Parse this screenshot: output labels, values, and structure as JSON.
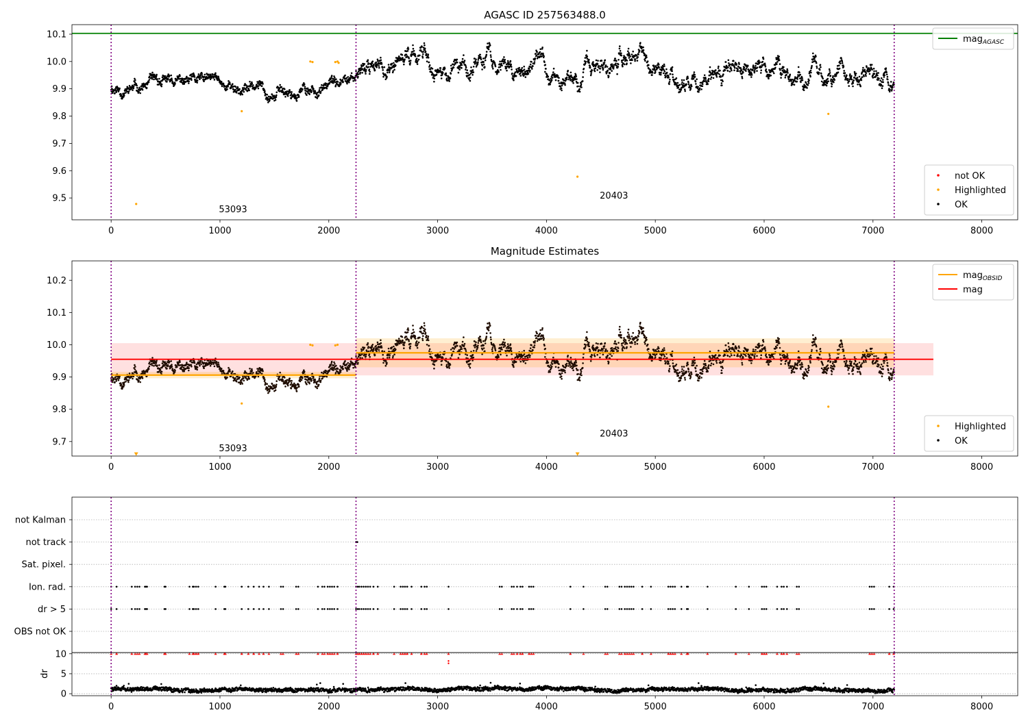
{
  "chart_data": [
    {
      "type": "scatter",
      "title": "AGASC ID 257563488.0",
      "xlabel": "",
      "ylabel": "",
      "xlim": [
        -360,
        8330
      ],
      "ylim": [
        9.42,
        10.135
      ],
      "xticks": [
        0,
        1000,
        2000,
        3000,
        4000,
        5000,
        6000,
        7000,
        8000
      ],
      "xtick_labels": [
        "0",
        "1000",
        "2000",
        "3000",
        "4000",
        "5000",
        "6000",
        "7000",
        "8000"
      ],
      "yticks": [
        9.5,
        9.6,
        9.7,
        9.8,
        9.9,
        10.0,
        10.1
      ],
      "ytick_labels": [
        "9.5",
        "9.6",
        "9.7",
        "9.8",
        "9.9",
        "10.0",
        "10.1"
      ],
      "grid": false,
      "obsid_boundaries": [
        0,
        2250,
        7195
      ],
      "obsid_annotations": [
        {
          "text": "53093",
          "x": 1120,
          "y": 9.447
        },
        {
          "text": "20403",
          "x": 4620,
          "y": 9.498
        }
      ],
      "reference_line": {
        "name": "mag_AGASC",
        "y": 10.103,
        "x_range": [
          -360,
          8330
        ],
        "color": "#008000"
      },
      "series": [
        {
          "name": "OK",
          "color": "#000000",
          "segments": [
            {
              "x_range": [
                0,
                2250
              ],
              "baseline": 9.905,
              "amplitude": 0.045
            },
            {
              "x_range": [
                2250,
                7195
              ],
              "baseline": 9.975,
              "amplitude": 0.085
            }
          ]
        },
        {
          "name": "Highlighted",
          "color": "#ffa500",
          "points": [
            {
              "x": 230,
              "y": 9.478
            },
            {
              "x": 1200,
              "y": 9.818
            },
            {
              "x": 1830,
              "y": 10.0
            },
            {
              "x": 1850,
              "y": 9.998
            },
            {
              "x": 2060,
              "y": 9.998
            },
            {
              "x": 2080,
              "y": 10.0
            },
            {
              "x": 2090,
              "y": 9.995
            },
            {
              "x": 4285,
              "y": 9.578
            },
            {
              "x": 6590,
              "y": 9.808
            }
          ]
        },
        {
          "name": "not OK",
          "color": "#ff0000",
          "points": []
        }
      ],
      "legends": [
        {
          "position": "top-right",
          "entries": [
            {
              "label": "mag",
              "sub": "AGASC",
              "kind": "line",
              "color": "#008000"
            }
          ]
        },
        {
          "position": "lower-right",
          "entries": [
            {
              "label": "not OK",
              "kind": "dot",
              "color": "#ff0000"
            },
            {
              "label": "Highlighted",
              "kind": "dot",
              "color": "#ffa500"
            },
            {
              "label": "OK",
              "kind": "dot",
              "color": "#000000"
            }
          ]
        }
      ]
    },
    {
      "type": "scatter",
      "title": "Magnitude Estimates",
      "xlabel": "",
      "ylabel": "",
      "xlim": [
        -360,
        8330
      ],
      "ylim": [
        9.655,
        10.26
      ],
      "xticks": [
        0,
        1000,
        2000,
        3000,
        4000,
        5000,
        6000,
        7000,
        8000
      ],
      "xtick_labels": [
        "0",
        "1000",
        "2000",
        "3000",
        "4000",
        "5000",
        "6000",
        "7000",
        "8000"
      ],
      "yticks": [
        9.7,
        9.8,
        9.9,
        10.0,
        10.1,
        10.2
      ],
      "ytick_labels": [
        "9.7",
        "9.8",
        "9.9",
        "10.0",
        "10.1",
        "10.2"
      ],
      "grid": false,
      "obsid_boundaries": [
        0,
        2250,
        7195
      ],
      "obsid_annotations": [
        {
          "text": "53093",
          "x": 1120,
          "y": 9.67
        },
        {
          "text": "20403",
          "x": 4620,
          "y": 9.715
        }
      ],
      "mag_line": {
        "name": "mag",
        "y": 9.955,
        "band": [
          9.905,
          10.005
        ],
        "x_range": [
          0,
          7555
        ],
        "color": "#ff0000"
      },
      "mag_obsid_lines": [
        {
          "x_range": [
            0,
            2250
          ],
          "y": 9.906,
          "band": [
            9.896,
            9.916
          ]
        },
        {
          "x_range": [
            2250,
            7195
          ],
          "y": 9.975,
          "band": [
            9.93,
            10.02
          ]
        }
      ],
      "series": [
        {
          "name": "OK",
          "color": "#000000",
          "segments": [
            {
              "x_range": [
                0,
                2250
              ],
              "baseline": 9.905,
              "amplitude": 0.045
            },
            {
              "x_range": [
                2250,
                7195
              ],
              "baseline": 9.975,
              "amplitude": 0.085
            }
          ]
        },
        {
          "name": "Highlighted",
          "color": "#ffa500",
          "points": [
            {
              "x": 1200,
              "y": 9.818
            },
            {
              "x": 1830,
              "y": 10.0
            },
            {
              "x": 1850,
              "y": 9.998
            },
            {
              "x": 2060,
              "y": 9.998
            },
            {
              "x": 2080,
              "y": 10.0
            },
            {
              "x": 6590,
              "y": 9.808
            }
          ]
        },
        {
          "name": "Highlighted (below range)",
          "color": "#ffa500",
          "marker": "down-triangle",
          "points": [
            {
              "x": 230,
              "y": 9.66
            },
            {
              "x": 4285,
              "y": 9.66
            }
          ]
        }
      ],
      "legends": [
        {
          "position": "top-right",
          "entries": [
            {
              "label": "mag",
              "sub": "OBSID",
              "kind": "line",
              "color": "#ffa500"
            },
            {
              "label": "mag",
              "sub": "",
              "kind": "line",
              "color": "#ff0000"
            }
          ]
        },
        {
          "position": "lower-right",
          "entries": [
            {
              "label": "Highlighted",
              "kind": "dot",
              "color": "#ffa500"
            },
            {
              "label": "OK",
              "kind": "dot",
              "color": "#000000"
            }
          ]
        }
      ]
    },
    {
      "type": "scatter",
      "title": "",
      "xlabel": "",
      "ylabel": "",
      "xlim": [
        -360,
        8330
      ],
      "flag_categories": [
        "not Kalman",
        "not track",
        "Sat. pixel.",
        "Ion. rad.",
        "dr > 5",
        "OBS not OK"
      ],
      "grid": true,
      "obsid_boundaries": [
        0,
        2250,
        7195
      ],
      "flags": [
        {
          "name": "not track",
          "x": [
            2250,
            2255,
            2262
          ]
        },
        {
          "name": "Ion. rad.",
          "x": [
            0,
            50,
            190,
            220,
            240,
            260,
            310,
            320,
            330,
            490,
            500,
            720,
            750,
            760,
            780,
            800,
            960,
            1040,
            1050,
            1200,
            1260,
            1310,
            1360,
            1400,
            1450,
            1560,
            1580,
            1700,
            1720,
            1900,
            1940,
            1960,
            1990,
            2010,
            2030,
            2050,
            2080,
            2250,
            2265,
            2280,
            2300,
            2320,
            2340,
            2360,
            2380,
            2410,
            2450,
            2600,
            2660,
            2680,
            2700,
            2720,
            2760,
            2850,
            2880,
            2900,
            3100,
            3570,
            3590,
            3680,
            3700,
            3730,
            3760,
            3780,
            3840,
            3860,
            3880,
            4220,
            4340,
            4540,
            4560,
            4670,
            4690,
            4720,
            4740,
            4760,
            4780,
            4800,
            4880,
            4960,
            5120,
            5140,
            5160,
            5180,
            5240,
            5290,
            5300,
            5480,
            5740,
            5860,
            5980,
            6000,
            6020,
            6120,
            6160,
            6180,
            6210,
            6300,
            6320,
            6970,
            6990,
            7010,
            7150,
            7190
          ]
        },
        {
          "name": "dr > 5",
          "x": [
            0,
            50,
            190,
            220,
            240,
            260,
            310,
            320,
            330,
            490,
            500,
            720,
            750,
            760,
            780,
            800,
            960,
            1040,
            1050,
            1200,
            1260,
            1310,
            1360,
            1400,
            1450,
            1560,
            1580,
            1700,
            1720,
            1900,
            1940,
            1960,
            1990,
            2010,
            2030,
            2050,
            2080,
            2250,
            2265,
            2280,
            2300,
            2320,
            2340,
            2360,
            2380,
            2410,
            2450,
            2600,
            2660,
            2680,
            2700,
            2720,
            2760,
            2850,
            2880,
            2900,
            3100,
            3570,
            3590,
            3680,
            3700,
            3730,
            3760,
            3780,
            3840,
            3860,
            3880,
            4220,
            4340,
            4540,
            4560,
            4670,
            4690,
            4720,
            4740,
            4760,
            4780,
            4800,
            4880,
            4960,
            5120,
            5140,
            5160,
            5180,
            5240,
            5290,
            5300,
            5480,
            5740,
            5860,
            5980,
            6000,
            6020,
            6120,
            6160,
            6180,
            6210,
            6300,
            6320,
            6970,
            6990,
            7010,
            7150,
            7190
          ]
        }
      ]
    },
    {
      "type": "scatter",
      "title": "",
      "xlabel": "",
      "ylabel": "dr",
      "xlim": [
        -360,
        8330
      ],
      "ylim": [
        -0.5,
        10.3
      ],
      "xticks": [
        0,
        1000,
        2000,
        3000,
        4000,
        5000,
        6000,
        7000,
        8000
      ],
      "xtick_labels": [
        "0",
        "1000",
        "2000",
        "3000",
        "4000",
        "5000",
        "6000",
        "7000",
        "8000"
      ],
      "yticks": [
        0,
        5,
        10
      ],
      "ytick_labels": [
        "0",
        "5",
        "10"
      ],
      "grid": true,
      "obsid_boundaries": [
        0,
        2250,
        7195
      ],
      "series": [
        {
          "name": "dr",
          "color": "#000000",
          "x_range": [
            0,
            7195
          ],
          "baseline": 1.0,
          "amplitude": 0.6
        },
        {
          "name": "dr clipped",
          "color": "#ff0000",
          "marker": "up-triangle",
          "y": 10,
          "x": [
            0,
            50,
            190,
            220,
            240,
            260,
            310,
            320,
            330,
            490,
            500,
            720,
            750,
            760,
            780,
            800,
            960,
            1040,
            1050,
            1200,
            1260,
            1310,
            1360,
            1400,
            1450,
            1560,
            1580,
            1700,
            1720,
            1900,
            1940,
            1960,
            1990,
            2010,
            2030,
            2050,
            2080,
            2250,
            2265,
            2280,
            2300,
            2320,
            2340,
            2360,
            2380,
            2410,
            2450,
            2600,
            2660,
            2680,
            2700,
            2720,
            2760,
            2850,
            2880,
            2900,
            3100,
            3570,
            3590,
            3680,
            3700,
            3730,
            3760,
            3780,
            3840,
            3860,
            3880,
            4220,
            4340,
            4540,
            4560,
            4670,
            4690,
            4720,
            4740,
            4760,
            4780,
            4800,
            4880,
            4960,
            5120,
            5140,
            5160,
            5180,
            5240,
            5290,
            5300,
            5480,
            5740,
            5860,
            5980,
            6000,
            6020,
            6120,
            6160,
            6180,
            6210,
            6300,
            6320,
            6970,
            6990,
            7010,
            7150,
            7190
          ]
        },
        {
          "name": "dr",
          "color": "#ff0000",
          "points": [
            {
              "x": 3100,
              "y": 8.2
            },
            {
              "x": 3100,
              "y": 7.6
            }
          ]
        }
      ]
    }
  ]
}
